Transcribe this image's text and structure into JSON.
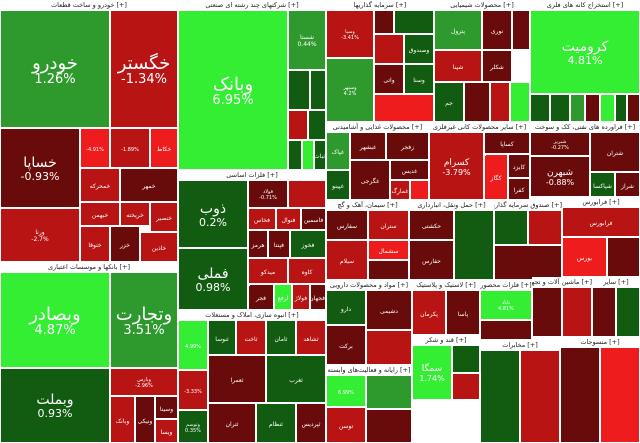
{
  "colors": {
    "bright_green": "#33ee33",
    "green": "#2e9a2e",
    "dark_green": "#125c12",
    "bright_red": "#ee1c1c",
    "red": "#b81414",
    "dark_red": "#6a0b0b"
  },
  "sectors": [
    {
      "id": "auto",
      "title": "[+] خودرو و ساخت قطعات",
      "tiles": [
        {
          "name": "خودرو",
          "pct": "1.26%",
          "color": "green",
          "size": "xl"
        },
        {
          "name": "خگستر",
          "pct": "-1.34%",
          "color": "red",
          "size": "xl"
        },
        {
          "name": "خساپا",
          "pct": "-0.93%",
          "color": "dark_red",
          "size": "l"
        },
        {
          "name": "",
          "pct": "-4.91%",
          "color": "bright_red",
          "size": "xs"
        },
        {
          "name": "",
          "pct": "-1.89%",
          "color": "red",
          "size": "xs"
        },
        {
          "name": "خمحرکه",
          "pct": "",
          "color": "red",
          "size": "s"
        },
        {
          "name": "خکاط",
          "pct": "",
          "color": "bright_red",
          "size": "s"
        },
        {
          "name": "خبهمن",
          "pct": "",
          "color": "red",
          "size": "s"
        },
        {
          "name": "خمهر",
          "pct": "",
          "color": "dark_red",
          "size": "s"
        },
        {
          "name": "خریخته",
          "pct": "",
          "color": "red",
          "size": "s"
        },
        {
          "name": "خزر",
          "pct": "",
          "color": "dark_red",
          "size": "s"
        },
        {
          "name": "خنصیر",
          "pct": "",
          "color": "red",
          "size": "s"
        },
        {
          "name": "ورنا",
          "pct": "-2.7%",
          "color": "red",
          "size": "s"
        },
        {
          "name": "خاذین",
          "pct": "",
          "color": "red",
          "size": "s"
        },
        {
          "name": "ختوقا",
          "pct": "",
          "color": "red",
          "size": "s"
        }
      ]
    },
    {
      "id": "bank",
      "title": "[+] بانکها و موسسات اعتباری",
      "tiles": [
        {
          "name": "وبصادر",
          "pct": "4.87%",
          "color": "bright_green",
          "size": "xl"
        },
        {
          "name": "وتجارت",
          "pct": "3.51%",
          "color": "green",
          "size": "xl"
        },
        {
          "name": "وبملت",
          "pct": "0.93%",
          "color": "dark_green",
          "size": "l"
        },
        {
          "name": "وپارس",
          "pct": "-2.96%",
          "color": "red",
          "size": "xs"
        },
        {
          "name": "وبانک",
          "pct": "",
          "color": "red",
          "size": "s"
        },
        {
          "name": "ونیکی",
          "pct": "",
          "color": "dark_red",
          "size": "s"
        },
        {
          "name": "وسینا",
          "pct": "",
          "color": "dark_red",
          "size": "s"
        },
        {
          "name": "ویسا",
          "pct": "",
          "color": "red",
          "size": "s"
        }
      ]
    },
    {
      "id": "holding",
      "title": "[+] شرکتهای چند رشته ای صنعتی",
      "tiles": [
        {
          "name": "وبانک",
          "pct": "6.95%",
          "color": "bright_green",
          "size": "xl"
        },
        {
          "name": "شستا",
          "pct": "0.44%",
          "color": "green",
          "size": "s"
        },
        {
          "name": "",
          "pct": "",
          "color": "dark_green",
          "size": "s"
        },
        {
          "name": "",
          "pct": "",
          "color": "dark_green",
          "size": "s"
        },
        {
          "name": "",
          "pct": "",
          "color": "red",
          "size": "s"
        },
        {
          "name": "",
          "pct": "",
          "color": "dark_green",
          "size": "s"
        },
        {
          "name": "",
          "pct": "",
          "color": "dark_green",
          "size": "s"
        },
        {
          "name": "",
          "pct": "",
          "color": "bright_green",
          "size": "s"
        },
        {
          "name": "ثبات",
          "pct": "",
          "color": "dark_green",
          "size": "s"
        }
      ]
    },
    {
      "id": "basic",
      "title": "[+] فلزات اساسی",
      "tiles": [
        {
          "name": "ذوب",
          "pct": "0.2%",
          "color": "dark_green",
          "size": "l"
        },
        {
          "name": "فملی",
          "pct": "0.98%",
          "color": "dark_green",
          "size": "l"
        },
        {
          "name": "فولاد",
          "pct": "-0.71%",
          "color": "dark_red",
          "size": "xs"
        },
        {
          "name": "",
          "pct": "",
          "color": "red",
          "size": "s"
        },
        {
          "name": "فخاس",
          "pct": "",
          "color": "red",
          "size": "s"
        },
        {
          "name": "فنوال",
          "pct": "",
          "color": "red",
          "size": "s"
        },
        {
          "name": "فاسمین",
          "pct": "",
          "color": "dark_red",
          "size": "s"
        },
        {
          "name": "هرمز",
          "pct": "",
          "color": "dark_red",
          "size": "s"
        },
        {
          "name": "فپنتا",
          "pct": "",
          "color": "dark_red",
          "size": "s"
        },
        {
          "name": "فخوز",
          "pct": "",
          "color": "dark_green",
          "size": "s"
        },
        {
          "name": "میدکو",
          "pct": "",
          "color": "red",
          "size": "s"
        },
        {
          "name": "کاوه",
          "pct": "",
          "color": "red",
          "size": "s"
        },
        {
          "name": "فجر",
          "pct": "",
          "color": "dark_red",
          "size": "s"
        },
        {
          "name": "ارفع",
          "pct": "",
          "color": "bright_green",
          "size": "s"
        },
        {
          "name": "فولاژ",
          "pct": "",
          "color": "red",
          "size": "s"
        },
        {
          "name": "فجهان",
          "pct": "",
          "color": "dark_red",
          "size": "s"
        },
        {
          "name": "فلوله",
          "pct": "",
          "color": "red",
          "size": "s"
        }
      ]
    },
    {
      "id": "telecom",
      "title": "[+] انبوه سازی، املاک و مستغلات",
      "tiles": [
        {
          "name": "",
          "pct": "4.99%",
          "color": "bright_green",
          "size": "xs"
        },
        {
          "name": "",
          "pct": "-3.33%",
          "color": "red",
          "size": "xs"
        },
        {
          "name": "وتوسم",
          "pct": "0.35%",
          "color": "dark_green",
          "size": "xs"
        },
        {
          "name": "ثنوسا",
          "pct": "",
          "color": "dark_green",
          "size": "s"
        },
        {
          "name": "ثاخت",
          "pct": "",
          "color": "red",
          "size": "s"
        },
        {
          "name": "ثامان",
          "pct": "",
          "color": "dark_green",
          "size": "s"
        },
        {
          "name": "ثشاهد",
          "pct": "",
          "color": "red",
          "size": "s"
        },
        {
          "name": "ثعمرا",
          "pct": "",
          "color": "dark_red",
          "size": "s"
        },
        {
          "name": "ثغرب",
          "pct": "",
          "color": "dark_green",
          "size": "s"
        },
        {
          "name": "ثتران",
          "pct": "",
          "color": "dark_red",
          "size": "s"
        },
        {
          "name": "ثنظام",
          "pct": "",
          "color": "dark_green",
          "size": "s"
        },
        {
          "name": "ثپردیس",
          "pct": "",
          "color": "dark_red",
          "size": "s"
        }
      ]
    },
    {
      "id": "invest",
      "title": "[+] سرمایه گذاریها",
      "tiles": [
        {
          "name": "وسپا",
          "pct": "-3.41%",
          "color": "red",
          "size": "xs"
        },
        {
          "name": "وسپهر",
          "pct": "4.2%",
          "color": "green",
          "size": "xs"
        },
        {
          "name": "",
          "pct": "",
          "color": "dark_red",
          "size": "s"
        },
        {
          "name": "",
          "pct": "",
          "color": "dark_green",
          "size": "s"
        },
        {
          "name": "",
          "pct": "",
          "color": "red",
          "size": "s"
        },
        {
          "name": "وصندوق",
          "pct": "",
          "color": "dark_green",
          "size": "s"
        },
        {
          "name": "واتی",
          "pct": "",
          "color": "dark_red",
          "size": "s"
        },
        {
          "name": "وسنا",
          "pct": "",
          "color": "dark_green",
          "size": "s"
        },
        {
          "name": "",
          "pct": "",
          "color": "bright_red",
          "size": "s"
        }
      ]
    },
    {
      "id": "petro",
      "title": "[+] محصولات شیمیایی",
      "tiles": [
        {
          "name": "پترول",
          "pct": "",
          "color": "green",
          "size": "s"
        },
        {
          "name": "نوری",
          "pct": "",
          "color": "dark_red",
          "size": "s"
        },
        {
          "name": "",
          "pct": "",
          "color": "dark_red",
          "size": "s"
        },
        {
          "name": "شپنا",
          "pct": "",
          "color": "red",
          "size": "s"
        },
        {
          "name": "شکلر",
          "pct": "",
          "color": "dark_red",
          "size": "s"
        },
        {
          "name": "جم",
          "pct": "",
          "color": "dark_green",
          "size": "s"
        },
        {
          "name": "",
          "pct": "",
          "color": "dark_red",
          "size": "s"
        },
        {
          "name": "",
          "pct": "",
          "color": "red",
          "size": "s"
        },
        {
          "name": "",
          "pct": "",
          "color": "bright_green",
          "size": "s"
        }
      ]
    },
    {
      "id": "mining",
      "title": "[+] استخراج کانه های فلزی",
      "tiles": [
        {
          "name": "کرومیت",
          "pct": "4.81%",
          "color": "bright_green",
          "size": "l"
        },
        {
          "name": "",
          "pct": "",
          "color": "dark_green",
          "size": "s"
        },
        {
          "name": "",
          "pct": "",
          "color": "dark_green",
          "size": "s"
        },
        {
          "name": "",
          "pct": "",
          "color": "green",
          "size": "s"
        },
        {
          "name": "",
          "pct": "",
          "color": "dark_red",
          "size": "s"
        },
        {
          "name": "",
          "pct": "",
          "color": "bright_green",
          "size": "s"
        },
        {
          "name": "",
          "pct": "",
          "color": "dark_green",
          "size": "s"
        },
        {
          "name": "",
          "pct": "",
          "color": "dark_red",
          "size": "s"
        }
      ]
    },
    {
      "id": "food",
      "title": "[+] محصولات غذایی و آشامیدنی",
      "tiles": [
        {
          "name": "غپاک",
          "pct": "",
          "color": "green",
          "size": "s"
        },
        {
          "name": "غبشهر",
          "pct": "",
          "color": "dark_red",
          "size": "s"
        },
        {
          "name": "زفجر",
          "pct": "",
          "color": "dark_red",
          "size": "s"
        },
        {
          "name": "غگرجی",
          "pct": "",
          "color": "dark_red",
          "size": "s"
        },
        {
          "name": "غپینو",
          "pct": "",
          "color": "dark_green",
          "size": "s"
        },
        {
          "name": "غدیس",
          "pct": "",
          "color": "dark_red",
          "size": "s"
        },
        {
          "name": "غمارگ",
          "pct": "",
          "color": "red",
          "size": "s"
        },
        {
          "name": "",
          "pct": "",
          "color": "bright_red",
          "size": "s"
        }
      ]
    },
    {
      "id": "nonmetal",
      "title": "[+] سایر محصولات کانی غیرفلزی",
      "tiles": [
        {
          "name": "کسرام",
          "pct": "-3.79%",
          "color": "red",
          "size": "m"
        },
        {
          "name": "کساپا",
          "pct": "",
          "color": "dark_red",
          "size": "s"
        },
        {
          "name": "کگاز",
          "pct": "",
          "color": "bright_red",
          "size": "s"
        },
        {
          "name": "کایزد",
          "pct": "",
          "color": "dark_red",
          "size": "s"
        },
        {
          "name": "کفرا",
          "pct": "",
          "color": "dark_red",
          "size": "s"
        },
        {
          "name": "",
          "pct": "",
          "color": "dark_red",
          "size": "s"
        }
      ]
    },
    {
      "id": "oil",
      "title": "[+] فراورده های نفتی، کک و سوخت",
      "tiles": [
        {
          "name": "شبریز",
          "pct": "-0.27%",
          "color": "dark_red",
          "size": "xs"
        },
        {
          "name": "شبهرن",
          "pct": "-0.88%",
          "color": "dark_red",
          "size": "m"
        },
        {
          "name": "شتران",
          "pct": "",
          "color": "dark_red",
          "size": "s"
        },
        {
          "name": "شپاکسا",
          "pct": "",
          "color": "dark_green",
          "size": "s"
        },
        {
          "name": "شراز",
          "pct": "",
          "color": "dark_red",
          "size": "s"
        }
      ]
    },
    {
      "id": "cement",
      "title": "[+] سیمان، آهک و گچ",
      "tiles": [
        {
          "name": "سفارس",
          "pct": "",
          "color": "dark_red",
          "size": "s"
        },
        {
          "name": "ستران",
          "pct": "",
          "color": "red",
          "size": "s"
        },
        {
          "name": "سیلام",
          "pct": "",
          "color": "red",
          "size": "s"
        },
        {
          "name": "سشمال",
          "pct": "",
          "color": "bright_red",
          "size": "s"
        },
        {
          "name": "",
          "pct": "",
          "color": "dark_red",
          "size": "s"
        }
      ]
    },
    {
      "id": "transport",
      "title": "[+] حمل ونقل، انبارداری",
      "tiles": [
        {
          "name": "حکشتی",
          "pct": "",
          "color": "dark_red",
          "size": "s"
        },
        {
          "name": "حفارس",
          "pct": "",
          "color": "dark_red",
          "size": "s"
        },
        {
          "name": "",
          "pct": "",
          "color": "dark_green",
          "size": "s"
        }
      ]
    },
    {
      "id": "etf",
      "title": "[+] صندوق سرمایه گذاری",
      "tiles": [
        {
          "name": "",
          "pct": "",
          "color": "dark_green",
          "size": "s"
        },
        {
          "name": "",
          "pct": "",
          "color": "red",
          "size": "s"
        },
        {
          "name": "",
          "pct": "",
          "color": "dark_red",
          "size": "s"
        }
      ]
    },
    {
      "id": "otc",
      "title": "[+] فرابورس",
      "tiles": [
        {
          "name": "فرابورس",
          "pct": "",
          "color": "red",
          "size": "s"
        },
        {
          "name": "بورس",
          "pct": "",
          "color": "bright_red",
          "size": "s"
        },
        {
          "name": "",
          "pct": "",
          "color": "dark_red",
          "size": "s"
        }
      ]
    },
    {
      "id": "pharma",
      "title": "[+] مواد و محصولات دارویی",
      "tiles": [
        {
          "name": "دارو",
          "pct": "",
          "color": "dark_green",
          "size": "s"
        },
        {
          "name": "برکت",
          "pct": "",
          "color": "dark_red",
          "size": "s"
        },
        {
          "name": "دشیمی",
          "pct": "",
          "color": "dark_red",
          "size": "s"
        },
        {
          "name": "",
          "pct": "",
          "color": "red",
          "size": "s"
        }
      ]
    },
    {
      "id": "rubber",
      "title": "[+] لاستیک و پلاستیک",
      "tiles": [
        {
          "name": "پکرمان",
          "pct": "",
          "color": "red",
          "size": "s"
        },
        {
          "name": "پاسا",
          "pct": "",
          "color": "dark_red",
          "size": "s"
        }
      ]
    },
    {
      "id": "tech",
      "title": "[+] رایانه و فعالیت‌های وابسته",
      "tiles": [
        {
          "name": "",
          "pct": "6.99%",
          "color": "bright_green",
          "size": "xs"
        },
        {
          "name": "توسن",
          "pct": "",
          "color": "red",
          "size": "s"
        },
        {
          "name": "",
          "pct": "",
          "color": "green",
          "size": "s"
        },
        {
          "name": "",
          "pct": "",
          "color": "dark_red",
          "size": "s"
        }
      ]
    },
    {
      "id": "sugar",
      "title": "[+] قند و شکر",
      "tiles": [
        {
          "name": "سمگا",
          "pct": "1.74%",
          "color": "bright_green",
          "size": "m"
        },
        {
          "name": "",
          "pct": "",
          "color": "dark_green",
          "size": "s"
        },
        {
          "name": "",
          "pct": "",
          "color": "red",
          "size": "s"
        }
      ]
    },
    {
      "id": "metal_products",
      "title": "[+] فلزات محصور",
      "tiles": [
        {
          "name": "ثاباد",
          "pct": "4.81%",
          "color": "bright_green",
          "size": "xs"
        },
        {
          "name": "",
          "pct": "",
          "color": "dark_red",
          "size": "s"
        }
      ]
    },
    {
      "id": "machinery",
      "title": "[+] ماشین آلات و تجهیزات",
      "tiles": [
        {
          "name": "",
          "pct": "",
          "color": "dark_red",
          "size": "s"
        },
        {
          "name": "",
          "pct": "",
          "color": "red",
          "size": "s"
        }
      ]
    },
    {
      "id": "services",
      "title": "[+] سایر",
      "tiles": [
        {
          "name": "",
          "pct": "",
          "color": "dark_red",
          "size": "s"
        },
        {
          "name": "",
          "pct": "",
          "color": "dark_green",
          "size": "s"
        }
      ]
    },
    {
      "id": "electric",
      "title": "[+] مخابرات",
      "tiles": [
        {
          "name": "",
          "pct": "",
          "color": "dark_green",
          "size": "s"
        },
        {
          "name": "",
          "pct": "",
          "color": "red",
          "size": "s"
        }
      ]
    },
    {
      "id": "textile",
      "title": "[+] منسوجات",
      "tiles": [
        {
          "name": "",
          "pct": "",
          "color": "dark_red",
          "size": "s"
        },
        {
          "name": "",
          "pct": "",
          "color": "bright_red",
          "size": "s"
        }
      ]
    }
  ]
}
